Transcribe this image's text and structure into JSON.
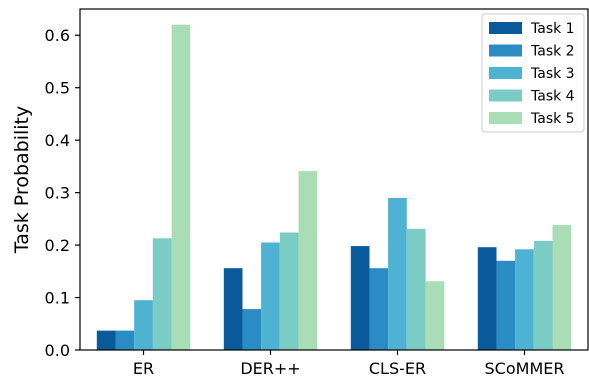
{
  "chart_data": {
    "type": "bar",
    "title": "",
    "xlabel": "",
    "ylabel": "Task Probability",
    "ylim": [
      0,
      0.65
    ],
    "yticks": [
      "0.0",
      "0.1",
      "0.2",
      "0.3",
      "0.4",
      "0.5",
      "0.6"
    ],
    "grid": false,
    "legend_position": "top-right",
    "categories": [
      "ER",
      "DER++",
      "CLS-ER",
      "SCoMMER"
    ],
    "series": [
      {
        "name": "Task 1",
        "color": "#0a5a9c",
        "values": [
          0.037,
          0.156,
          0.198,
          0.196
        ]
      },
      {
        "name": "Task 2",
        "color": "#2b8cc4",
        "values": [
          0.037,
          0.078,
          0.156,
          0.17
        ]
      },
      {
        "name": "Task 3",
        "color": "#4eb3d3",
        "values": [
          0.095,
          0.205,
          0.29,
          0.192
        ]
      },
      {
        "name": "Task 4",
        "color": "#7bccc4",
        "values": [
          0.213,
          0.224,
          0.231,
          0.208
        ]
      },
      {
        "name": "Task 5",
        "color": "#a8ddb5",
        "values": [
          0.62,
          0.341,
          0.131,
          0.238
        ]
      }
    ]
  }
}
